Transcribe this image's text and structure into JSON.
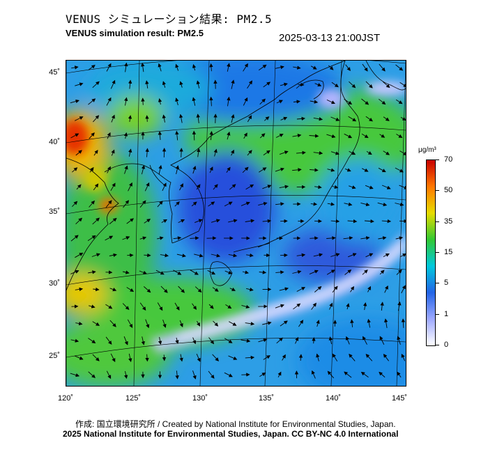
{
  "title": {
    "jp": "VENUS シミュレーション結果: PM2.5",
    "en": "VENUS simulation result: PM2.5"
  },
  "timestamp": "2025-03-13 21:00JST",
  "map": {
    "lat_labels": [
      "45˚",
      "40˚",
      "35˚",
      "30˚",
      "25˚"
    ],
    "lon_labels": [
      "120˚",
      "125˚",
      "130˚",
      "135˚",
      "140˚",
      "145˚"
    ]
  },
  "colorbar": {
    "unit": "μg/m³",
    "labels": [
      "70",
      "50",
      "35",
      "15",
      "5",
      "1",
      "0"
    ],
    "colors": [
      "#c80000",
      "#ff7800",
      "#e6dc00",
      "#32c832",
      "#00c8dc",
      "#2364e6",
      "#9ea9ff",
      "#ffffff"
    ]
  },
  "credits": {
    "line1": "作成: 国立環境研究所 / Created by National Institute for Environmental Studies, Japan.",
    "line2": "2025 National Institute for Environmental Studies, Japan. CC BY-NC 4.0 International"
  }
}
